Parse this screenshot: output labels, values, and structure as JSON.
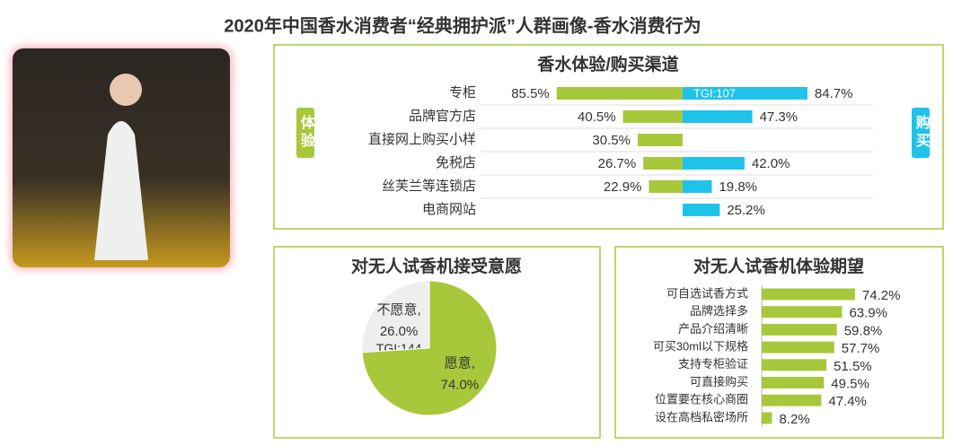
{
  "title": "2020年中国香水消费者“经典拥护派”人群画像-香水消费行为",
  "chart_data": [
    {
      "type": "butterfly",
      "title": "香水体验/购买渠道",
      "categories": [
        "专柜",
        "品牌官方店",
        "直接网上购买小样",
        "免税店",
        "丝芙兰等连锁店",
        "电商网站"
      ],
      "series": [
        {
          "name": "体验",
          "color": "#a8c83c",
          "values": [
            85.5,
            40.5,
            30.5,
            26.7,
            22.9,
            null
          ],
          "value_labels": [
            "85.5%",
            "40.5%",
            "30.5%",
            "26.7%",
            "22.9%",
            null
          ]
        },
        {
          "name": "购买",
          "color": "#1ec3ea",
          "values": [
            84.7,
            47.3,
            null,
            42.0,
            19.8,
            25.2
          ],
          "value_labels": [
            "84.7%",
            "47.3%",
            null,
            "42.0%",
            "19.8%",
            "25.2%"
          ]
        }
      ],
      "annotation": "TGI:107"
    },
    {
      "type": "pie",
      "title": "对无人试香机接受意愿",
      "categories": [
        "不愿意,",
        "愿意,"
      ],
      "values": [
        26.0,
        74.0
      ],
      "value_labels": [
        "26.0%",
        "74.0%"
      ],
      "colors": [
        "#eeeeee",
        "#a8c83c"
      ],
      "annotation": "TGI:144"
    },
    {
      "type": "hbar",
      "title": "对无人试香机体验期望",
      "categories": [
        "可自选试香方式",
        "品牌选择多",
        "产品介绍清晰",
        "可买30ml以下规格",
        "支持专柜验证",
        "可直接购买",
        "位置要在核心商圈",
        "设在高档私密场所"
      ],
      "values": [
        74.2,
        63.9,
        59.8,
        57.7,
        51.5,
        49.5,
        47.4,
        8.2
      ],
      "value_labels": [
        "74.2%",
        "63.9%",
        "59.8%",
        "57.7%",
        "51.5%",
        "49.5%",
        "47.4%",
        "8.2%"
      ],
      "color": "#a8c83c"
    }
  ]
}
